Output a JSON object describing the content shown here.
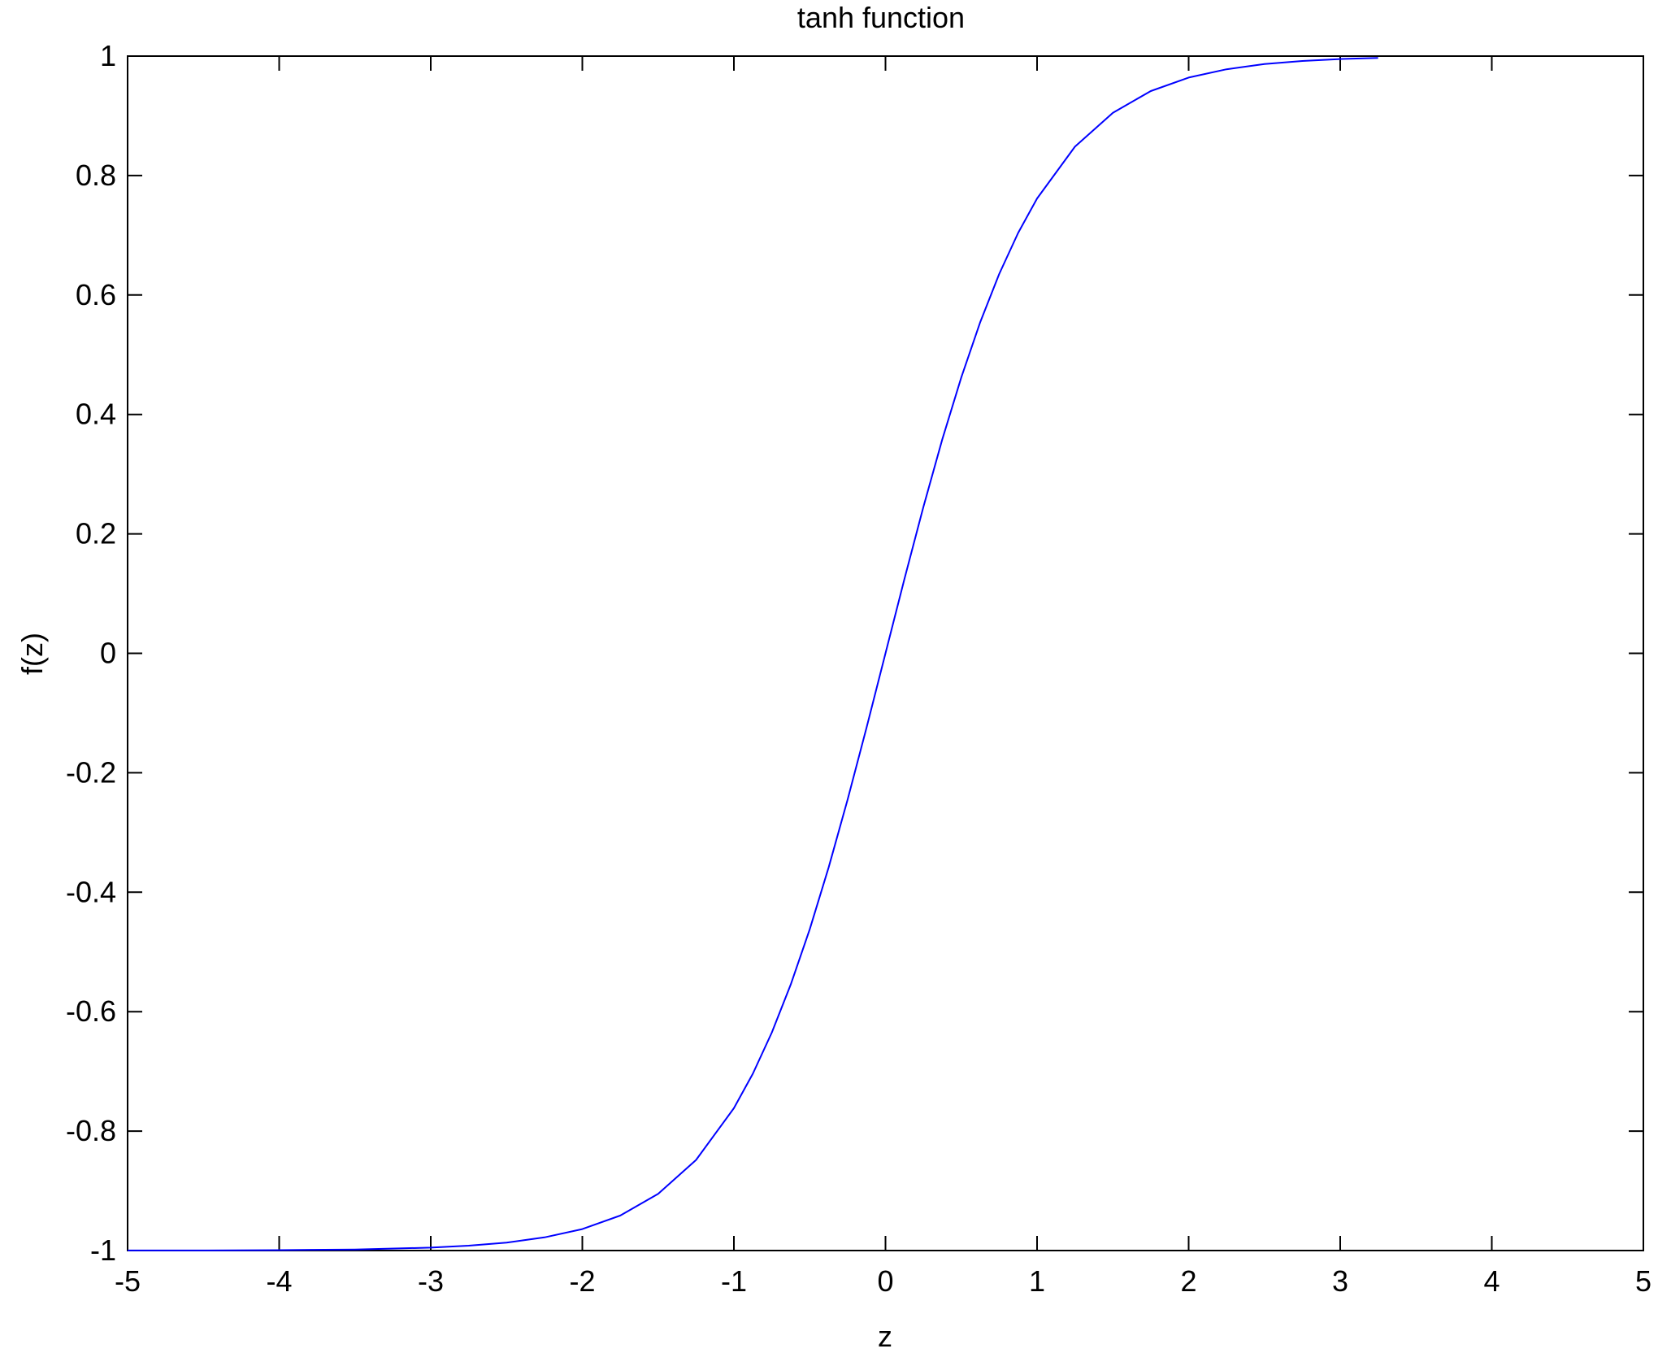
{
  "chart_data": {
    "type": "line",
    "title": "tanh function",
    "xlabel": "z",
    "ylabel": "f(z)",
    "xlim": [
      -5,
      5
    ],
    "ylim": [
      -1,
      1
    ],
    "xticks": [
      -5,
      -4,
      -3,
      -2,
      -1,
      0,
      1,
      2,
      3,
      4,
      5
    ],
    "xtick_labels": [
      "-5",
      "-4",
      "-3",
      "-2",
      "-1",
      "0",
      "1",
      "2",
      "3",
      "4",
      "5"
    ],
    "yticks": [
      -1,
      -0.8,
      -0.6,
      -0.4,
      -0.2,
      0,
      0.2,
      0.4,
      0.6,
      0.8,
      1
    ],
    "ytick_labels": [
      "-1",
      "-0.8",
      "-0.6",
      "-0.4",
      "-0.2",
      "0",
      "0.2",
      "0.4",
      "0.6",
      "0.8",
      "1"
    ],
    "grid": false,
    "series": [
      {
        "color": "#0000ff",
        "x": [
          -5,
          -4.5,
          -4,
          -3.5,
          -3,
          -2.75,
          -2.5,
          -2.25,
          -2,
          -1.75,
          -1.5,
          -1.25,
          -1,
          -0.875,
          -0.75,
          -0.625,
          -0.5,
          -0.375,
          -0.25,
          -0.125,
          0,
          0.125,
          0.25,
          0.375,
          0.5,
          0.625,
          0.75,
          0.875,
          1,
          1.25,
          1.5,
          1.75,
          2,
          2.25,
          2.5,
          2.75,
          3,
          3.25
        ],
        "y": [
          -0.9999,
          -0.9998,
          -0.9993,
          -0.9982,
          -0.9951,
          -0.9918,
          -0.9866,
          -0.978,
          -0.964,
          -0.9414,
          -0.9051,
          -0.8483,
          -0.7616,
          -0.7039,
          -0.6351,
          -0.5546,
          -0.4621,
          -0.3584,
          -0.2449,
          -0.1244,
          0,
          0.1244,
          0.2449,
          0.3584,
          0.4621,
          0.5546,
          0.6351,
          0.7039,
          0.7616,
          0.8483,
          0.9051,
          0.9414,
          0.964,
          0.978,
          0.9866,
          0.9918,
          0.9951,
          0.997
        ]
      }
    ]
  }
}
